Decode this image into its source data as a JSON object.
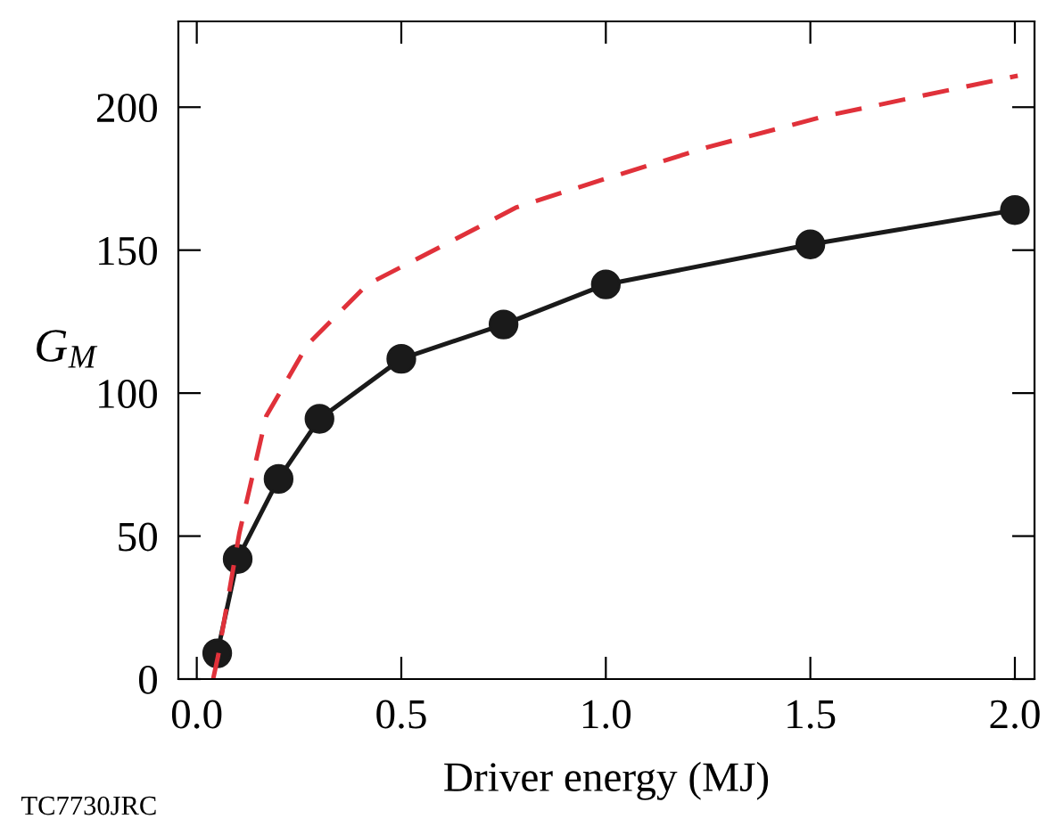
{
  "chart_data": {
    "type": "line",
    "xlabel": "Driver energy (MJ)",
    "ylabel": "G$_{M}$",
    "annotations": [
      "TC7730JRC"
    ],
    "xlim": [
      -0.045,
      2.048
    ],
    "ylim": [
      0,
      230
    ],
    "xticks": [
      {
        "value": 0,
        "label": "0.0"
      },
      0.5,
      {
        "value": 1,
        "label": "1.0"
      },
      1.5,
      {
        "value": 2,
        "label": "2.0"
      }
    ],
    "yticks": [
      0,
      50,
      100,
      150,
      200
    ],
    "grid": false,
    "legend": false,
    "series": [
      {
        "color": "#1a1a1a",
        "marker": "circle",
        "line_style": "solid",
        "x": [
          0.05,
          0.1,
          0.2,
          0.3,
          0.5,
          0.75,
          1.0,
          1.5,
          2.0
        ],
        "values": [
          9,
          42,
          70,
          91,
          112,
          124,
          138,
          152,
          164
        ]
      },
      {
        "color": "#e0313a",
        "marker": "none",
        "line_style": "dashed",
        "x": [
          0.04,
          0.052,
          0.104,
          0.17,
          0.271,
          0.417,
          0.607,
          0.782,
          1.0,
          1.249,
          1.54,
          2.007
        ],
        "values": [
          0,
          8,
          51,
          92,
          117,
          138,
          152,
          165,
          175,
          186,
          197,
          211
        ]
      }
    ]
  }
}
